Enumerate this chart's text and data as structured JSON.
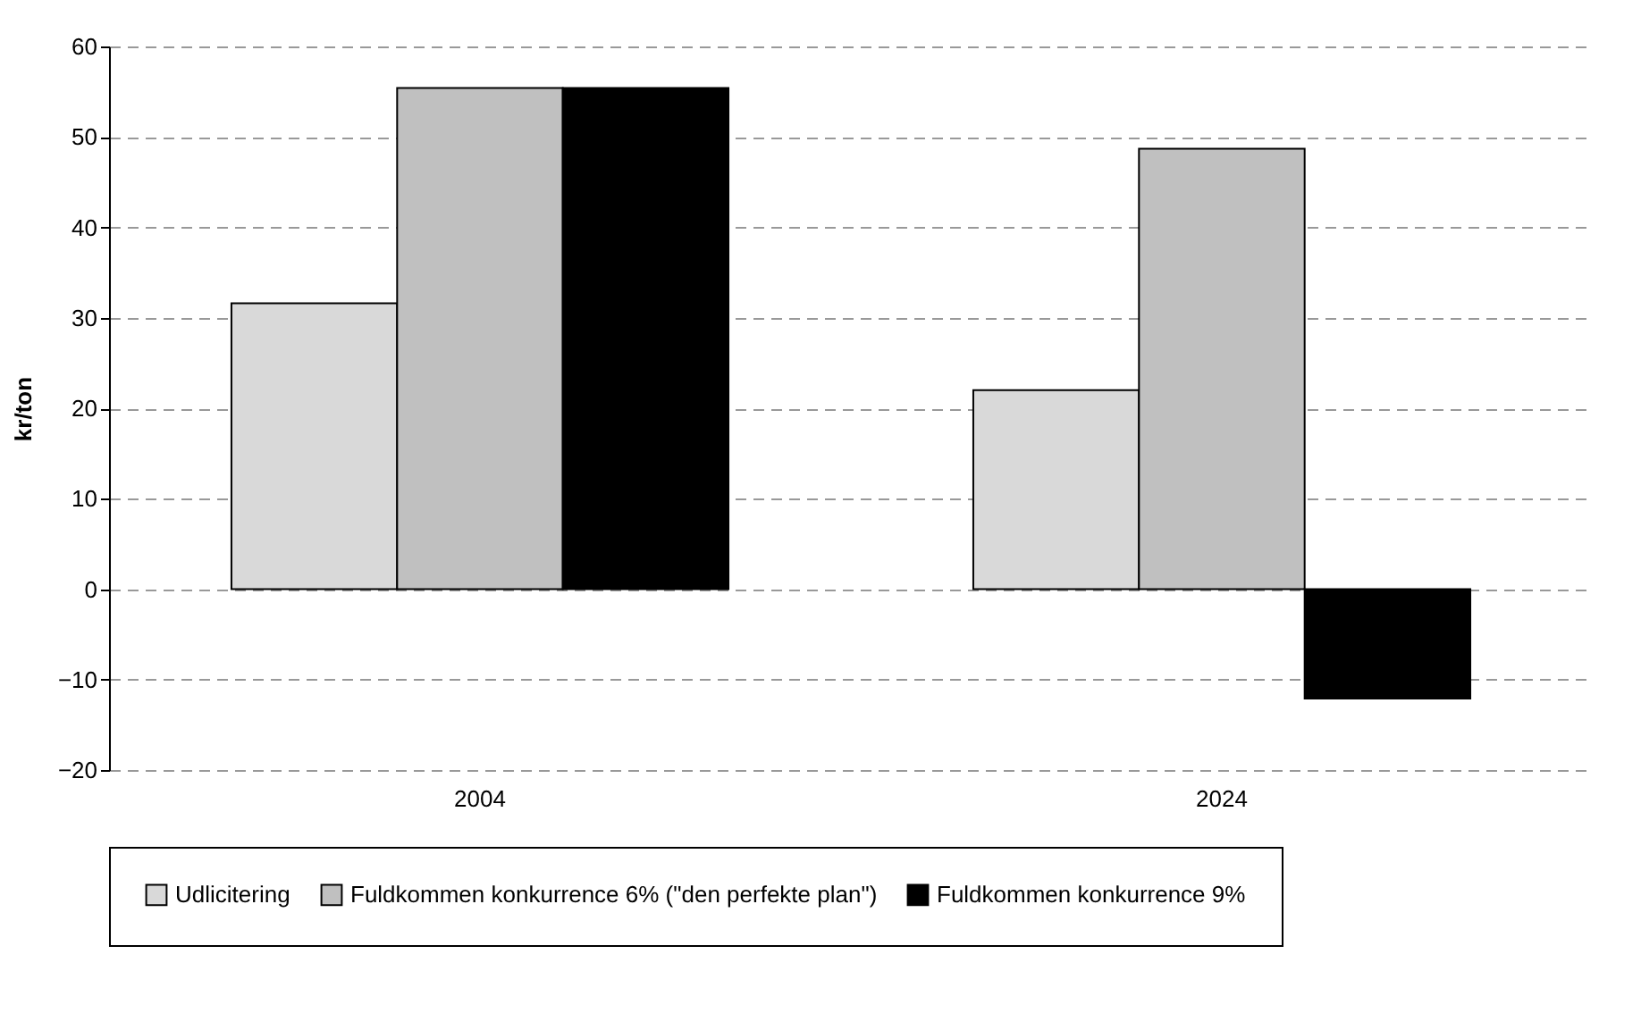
{
  "chart_data": {
    "type": "bar",
    "ylabel": "kr/ton",
    "categories": [
      "2004",
      "2024"
    ],
    "series": [
      {
        "name": "Udlicitering",
        "color": "#d9d9d9",
        "values": [
          31.6,
          22.0
        ]
      },
      {
        "name": "Fuldkommen konkurrence 6% (\"den perfekte plan\")",
        "color": "#c0c0c0",
        "values": [
          55.4,
          48.7
        ]
      },
      {
        "name": "Fuldkommen konkurrence 9%",
        "color": "#000000",
        "values": [
          55.4,
          -12.1
        ]
      }
    ],
    "ylim": [
      -20,
      60
    ],
    "yticks": [
      -20,
      -10,
      0,
      10,
      20,
      30,
      40,
      50,
      60
    ],
    "grid": "y",
    "legend": "bottom"
  }
}
